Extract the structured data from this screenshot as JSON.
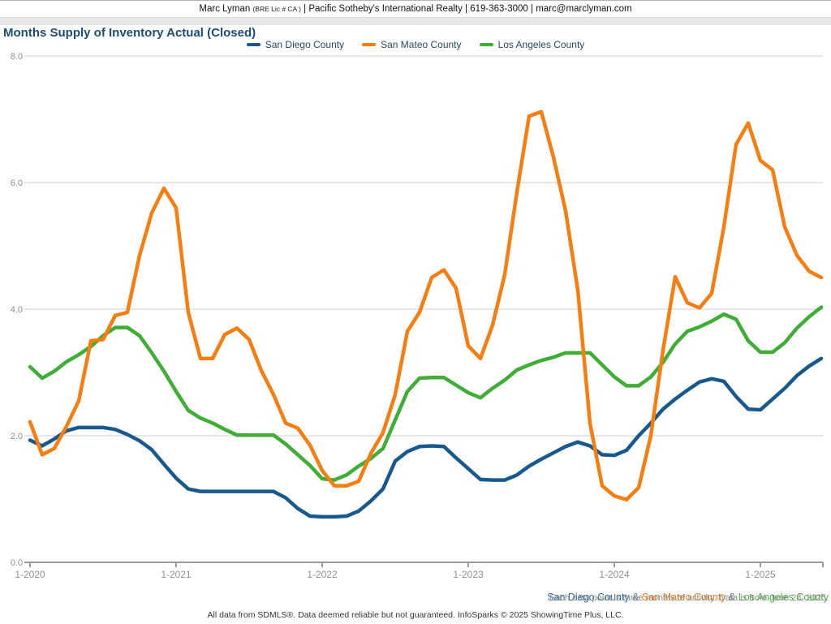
{
  "header": {
    "agent_name": "Marc Lyman",
    "license": "(BRE Lic # CA )",
    "rest": " | Pacific Sotheby's International Realty | 619-363-3000 | marc@marclyman.com"
  },
  "title": "Months Supply of Inventory Actual (Closed)",
  "colors": {
    "san_diego": "#17598f",
    "san_mateo": "#f87d0e",
    "los_angeles": "#3eae35",
    "footer_san_diego": "#2d6ca2",
    "footer_san_mateo": "#f57f14",
    "footer_los_angeles": "#4cb445",
    "ampersand": "#55718a",
    "gridline": "#cccccc",
    "axis": "#999999",
    "tick_label": "#909090",
    "title_navy": "#1d4d76"
  },
  "legend": {
    "items": [
      {
        "label": "San Diego County"
      },
      {
        "label": "San Mateo County"
      },
      {
        "label": "Los Angeles County"
      }
    ]
  },
  "chart_data": {
    "type": "line",
    "title": "Months Supply of Inventory Actual (Closed)",
    "x_start": "2020-01",
    "x_end": "2025-06",
    "x_step": "1 month",
    "points_per_series": 66,
    "x_tick_labels": [
      "1-2020",
      "1-2021",
      "1-2022",
      "1-2023",
      "1-2024",
      "1-2025"
    ],
    "x_tick_positions_months": [
      0,
      12,
      24,
      36,
      48,
      60
    ],
    "ylim": [
      0,
      8
    ],
    "y_ticks": [
      0,
      2,
      4,
      6,
      8
    ],
    "y_tick_labels": [
      "0.0",
      "2.0",
      "4.0",
      "6.0",
      "8.0"
    ],
    "grid": true,
    "legend_position": "top-center",
    "series": [
      {
        "name": "San Diego County",
        "color": "#17598f",
        "values": [
          1.93,
          1.84,
          1.95,
          2.08,
          2.13,
          2.13,
          2.13,
          2.1,
          2.02,
          1.92,
          1.78,
          1.55,
          1.33,
          1.16,
          1.12,
          1.12,
          1.12,
          1.12,
          1.12,
          1.12,
          1.12,
          1.02,
          0.85,
          0.73,
          0.72,
          0.72,
          0.73,
          0.81,
          0.97,
          1.16,
          1.6,
          1.75,
          1.83,
          1.84,
          1.83,
          1.65,
          1.48,
          1.31,
          1.3,
          1.3,
          1.38,
          1.52,
          1.63,
          1.73,
          1.83,
          1.9,
          1.84,
          1.7,
          1.69,
          1.77,
          2.0,
          2.2,
          2.42,
          2.58,
          2.72,
          2.85,
          2.9,
          2.86,
          2.62,
          2.42,
          2.41,
          2.58,
          2.75,
          2.95,
          3.1,
          3.22
        ]
      },
      {
        "name": "San Mateo County",
        "color": "#f87d0e",
        "values": [
          2.22,
          1.7,
          1.8,
          2.15,
          2.55,
          3.5,
          3.52,
          3.9,
          3.95,
          4.85,
          5.52,
          5.91,
          5.6,
          3.95,
          3.22,
          3.22,
          3.6,
          3.7,
          3.52,
          3.03,
          2.65,
          2.2,
          2.12,
          1.85,
          1.45,
          1.21,
          1.21,
          1.28,
          1.72,
          2.05,
          2.65,
          3.65,
          3.95,
          4.5,
          4.62,
          4.33,
          3.42,
          3.22,
          3.75,
          4.55,
          5.85,
          7.05,
          7.12,
          6.4,
          5.55,
          4.3,
          2.2,
          1.21,
          1.05,
          0.99,
          1.18,
          2.0,
          3.35,
          4.51,
          4.1,
          4.02,
          4.25,
          5.3,
          6.6,
          6.94,
          6.35,
          6.2,
          5.3,
          4.85,
          4.6,
          4.5
        ]
      },
      {
        "name": "Los Angeles County",
        "color": "#3eae35",
        "values": [
          3.09,
          2.91,
          3.02,
          3.17,
          3.28,
          3.41,
          3.58,
          3.71,
          3.71,
          3.58,
          3.31,
          3.02,
          2.7,
          2.4,
          2.28,
          2.2,
          2.1,
          2.01,
          2.01,
          2.01,
          2.01,
          1.87,
          1.7,
          1.53,
          1.32,
          1.3,
          1.38,
          1.52,
          1.64,
          1.8,
          2.25,
          2.7,
          2.91,
          2.92,
          2.92,
          2.8,
          2.68,
          2.6,
          2.75,
          2.88,
          3.04,
          3.12,
          3.19,
          3.24,
          3.31,
          3.31,
          3.31,
          3.12,
          2.93,
          2.79,
          2.79,
          2.93,
          3.16,
          3.45,
          3.65,
          3.72,
          3.81,
          3.92,
          3.84,
          3.5,
          3.32,
          3.32,
          3.47,
          3.7,
          3.88,
          4.03
        ]
      }
    ]
  },
  "footer": {
    "counties": [
      {
        "label": "San Diego County"
      },
      {
        "label": "San Mateo County"
      },
      {
        "label": "Los Angeles County"
      }
    ],
    "ampersand": " & ",
    "note": "Each data point is three months of activity. Data is from June 28, 2025.",
    "disclaimer": "All data from SDMLS®. Data deemed reliable but not guaranteed. InfoSparks © 2025 ShowingTime Plus, LLC."
  }
}
